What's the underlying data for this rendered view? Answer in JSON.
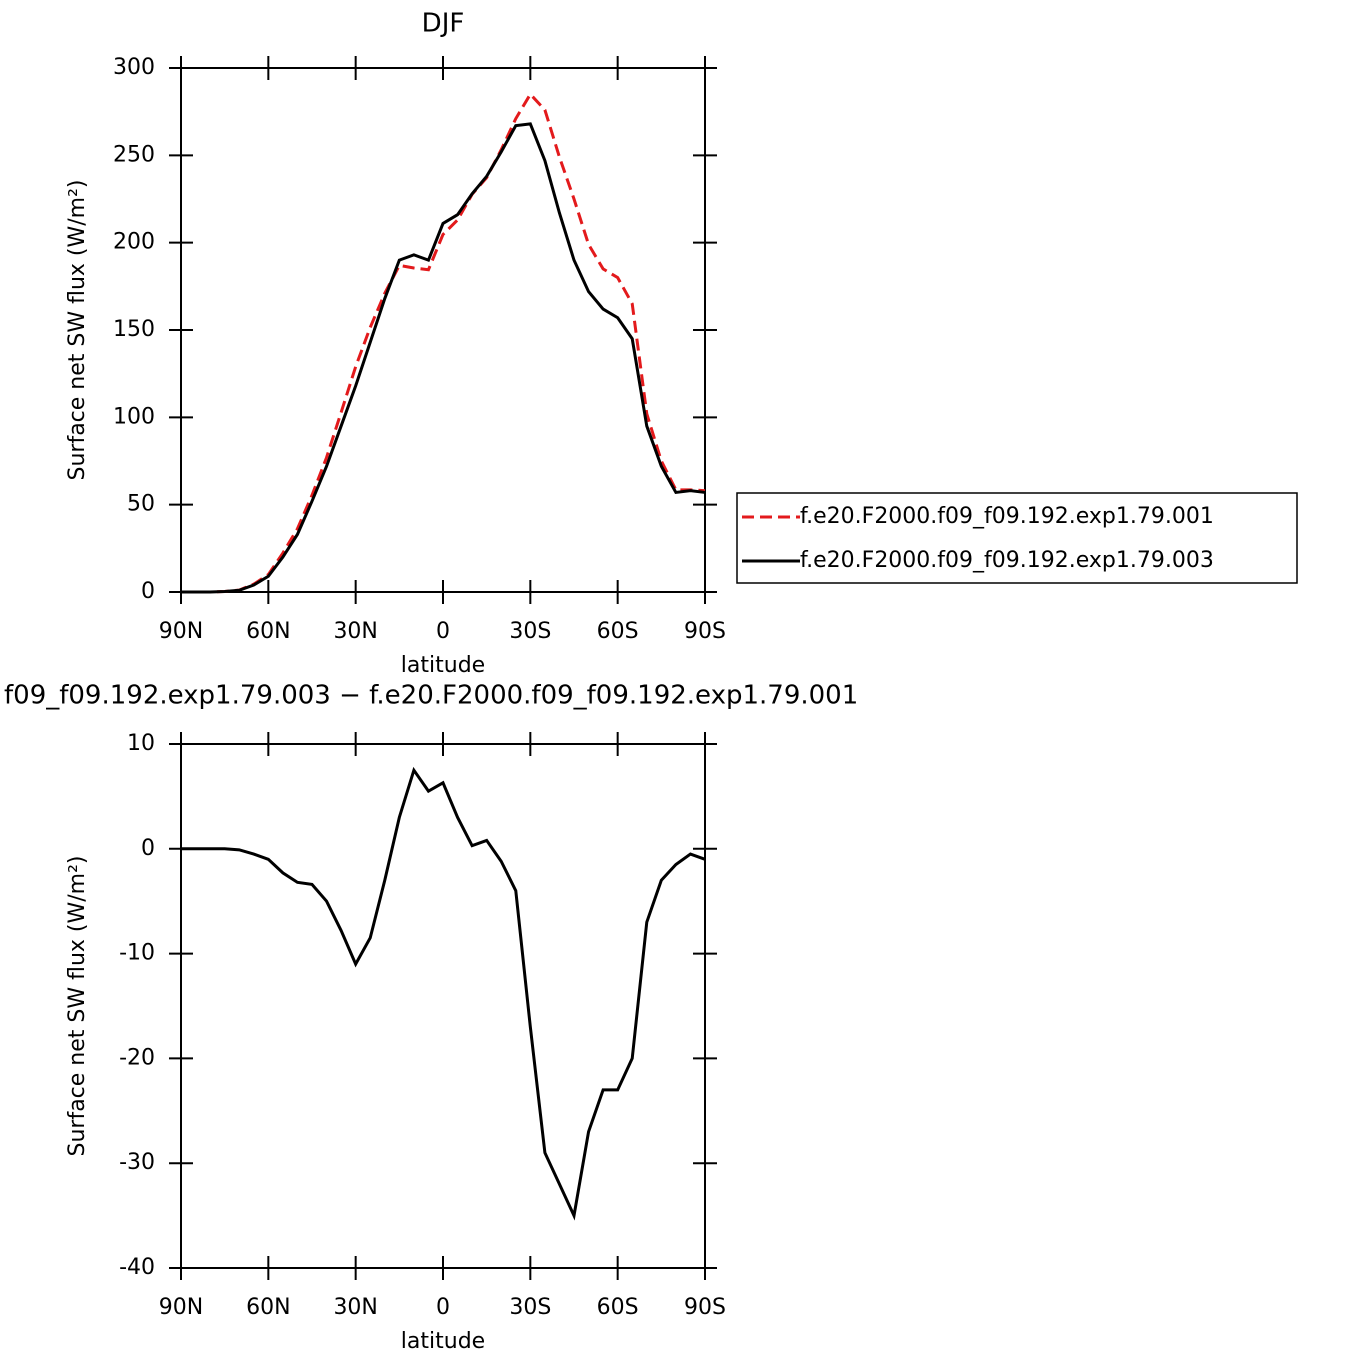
{
  "chart_data": [
    {
      "type": "line",
      "title": "DJF",
      "xlabel": "latitude",
      "ylabel": "Surface net SW flux (W/m²)",
      "x": [
        90,
        85,
        80,
        75,
        70,
        65,
        60,
        55,
        50,
        45,
        40,
        35,
        30,
        25,
        20,
        15,
        10,
        5,
        0,
        -5,
        -10,
        -15,
        -20,
        -25,
        -30,
        -35,
        -40,
        -45,
        -50,
        -55,
        -60,
        -65,
        -70,
        -75,
        -80,
        -85,
        -90
      ],
      "series": [
        {
          "name": "f.e20.F2000.f09_f09.192.exp1.79.001",
          "color": "#e31a1c",
          "dash": true,
          "values": [
            0,
            0,
            0,
            0.3,
            1.1,
            4.5,
            10,
            22.3,
            36.2,
            55.4,
            77,
            102.8,
            129,
            151.5,
            171,
            187,
            185.5,
            184.5,
            204.7,
            213,
            227.7,
            237.2,
            253.2,
            271,
            285,
            276,
            249,
            225,
            199,
            185,
            180,
            165,
            102,
            75,
            58.5,
            58.5,
            58
          ]
        },
        {
          "name": "f.e20.F2000.f09_f09.192.exp1.79.003",
          "color": "#000000",
          "dash": false,
          "values": [
            0,
            0,
            0,
            0.3,
            1,
            4,
            9,
            20,
            33,
            52,
            72,
            95,
            118,
            143,
            168,
            190,
            193,
            190,
            211,
            216,
            228,
            238,
            252,
            267,
            268,
            247,
            217,
            190,
            172,
            162,
            157,
            145,
            95,
            72,
            57,
            58,
            57
          ]
        }
      ],
      "xlim": [
        90,
        -90
      ],
      "xticks": [
        {
          "value": 90,
          "label": "90N"
        },
        {
          "value": 60,
          "label": "60N"
        },
        {
          "value": 30,
          "label": "30N"
        },
        0,
        {
          "value": -30,
          "label": "30S"
        },
        {
          "value": -60,
          "label": "60S"
        },
        {
          "value": -90,
          "label": "90S"
        }
      ],
      "ylim": [
        0,
        300
      ],
      "yticks": [
        0,
        50,
        100,
        150,
        200,
        250,
        300
      ],
      "legend": "right"
    },
    {
      "type": "line",
      "title": "f09_f09.192.exp1.79.003 − f.e20.F2000.f09_f09.192.exp1.79.001",
      "xlabel": "latitude",
      "ylabel": "Surface net SW flux (W/m²)",
      "x": [
        90,
        85,
        80,
        75,
        70,
        65,
        60,
        55,
        50,
        45,
        40,
        35,
        30,
        25,
        20,
        15,
        10,
        5,
        0,
        -5,
        -10,
        -15,
        -20,
        -25,
        -30,
        -35,
        -40,
        -45,
        -50,
        -55,
        -60,
        -65,
        -70,
        -75,
        -80,
        -85,
        -90
      ],
      "series": [
        {
          "color": "#000000",
          "dash": false,
          "values": [
            0,
            0,
            0,
            0,
            -0.1,
            -0.5,
            -1,
            -2.3,
            -3.2,
            -3.4,
            -5,
            -7.8,
            -11,
            -8.5,
            -3,
            3,
            7.5,
            5.5,
            6.3,
            3,
            0.3,
            0.8,
            -1.2,
            -4,
            -17,
            -29,
            -32,
            -35,
            -27,
            -23,
            -23,
            -20,
            -7,
            -3,
            -1.5,
            -0.5,
            -1
          ]
        }
      ],
      "xlim": [
        90,
        -90
      ],
      "xticks": [
        {
          "value": 90,
          "label": "90N"
        },
        {
          "value": 60,
          "label": "60N"
        },
        {
          "value": 30,
          "label": "30N"
        },
        0,
        {
          "value": -30,
          "label": "30S"
        },
        {
          "value": -60,
          "label": "60S"
        },
        {
          "value": -90,
          "label": "90S"
        }
      ],
      "ylim": [
        -40,
        10
      ],
      "yticks": [
        -40,
        -30,
        -20,
        -10,
        0,
        10
      ]
    }
  ]
}
